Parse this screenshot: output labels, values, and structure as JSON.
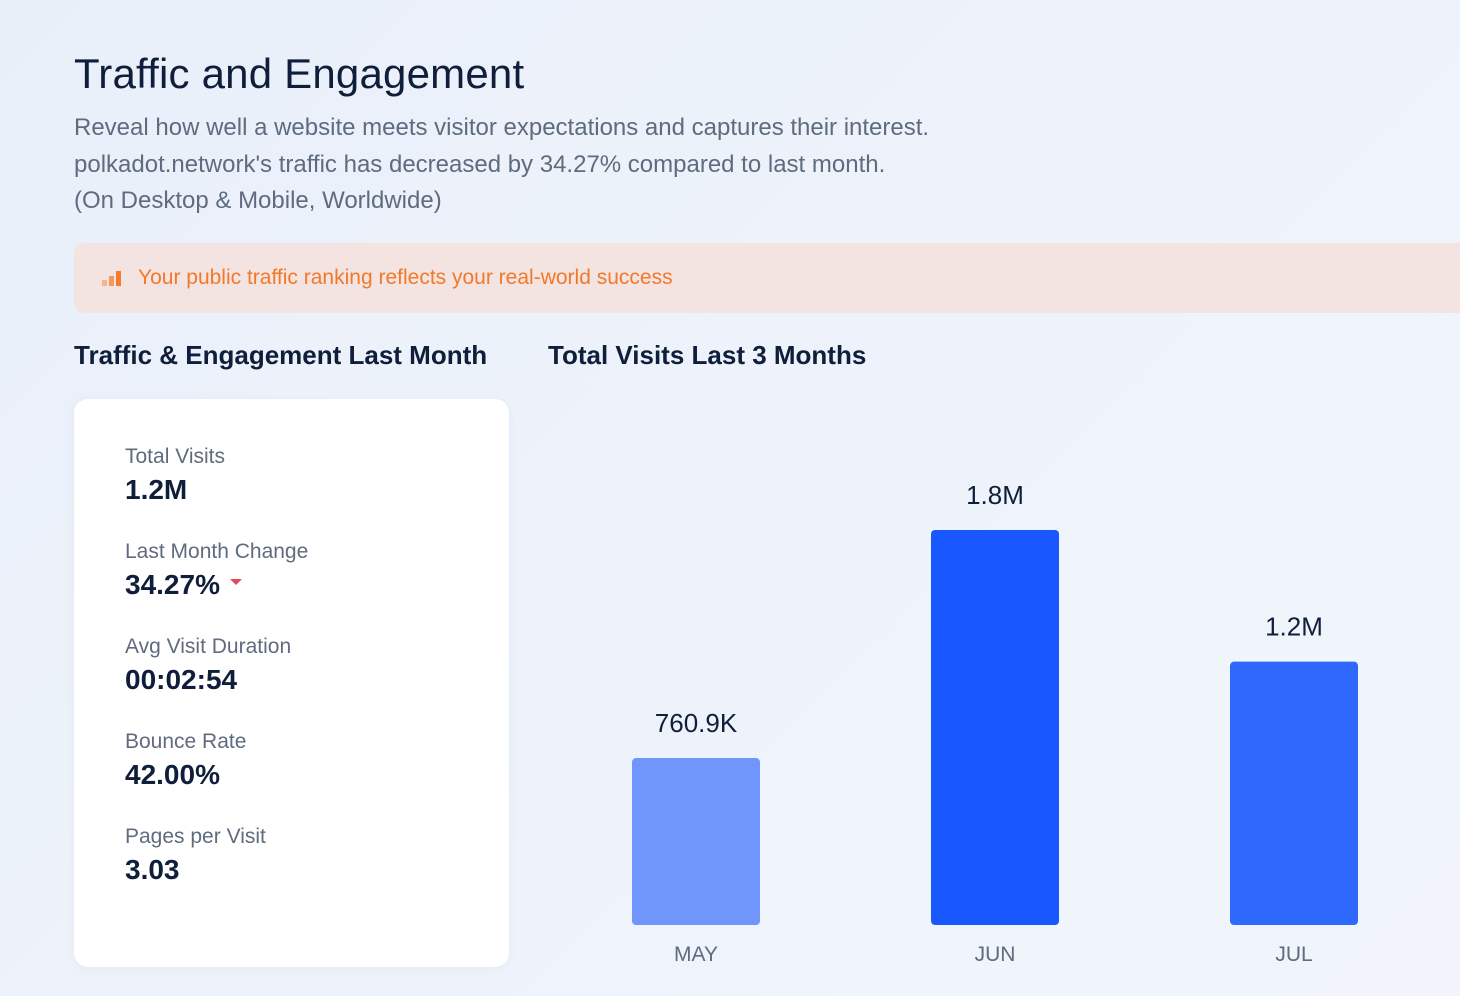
{
  "header": {
    "title": "Traffic and Engagement",
    "description_lines": [
      "Reveal how well a website meets visitor expectations and captures their interest.",
      "polkadot.network's traffic has decreased by 34.27% compared to last month.",
      "(On Desktop & Mobile, Worldwide)"
    ]
  },
  "banner": {
    "icon": "bar-chart-icon",
    "text": "Your public traffic ranking reflects your real-world success",
    "color": "#f2782a",
    "background": "#f4e4e1"
  },
  "sections": {
    "left_title": "Traffic & Engagement Last Month",
    "right_title": "Total Visits Last 3 Months"
  },
  "stats": [
    {
      "label": "Total Visits",
      "value": "1.2M"
    },
    {
      "label": "Last Month Change",
      "value": "34.27%",
      "trend": "down"
    },
    {
      "label": "Avg Visit Duration",
      "value": "00:02:54"
    },
    {
      "label": "Bounce Rate",
      "value": "42.00%"
    },
    {
      "label": "Pages per Visit",
      "value": "3.03"
    }
  ],
  "chart_data": {
    "type": "bar",
    "title": "Total Visits Last 3 Months",
    "categories": [
      "MAY",
      "JUN",
      "JUL"
    ],
    "values": [
      760900,
      1800000,
      1200000
    ],
    "value_labels": [
      "760.9K",
      "1.8M",
      "1.2M"
    ],
    "colors": [
      "#7096fc",
      "#1a58ff",
      "#2e68fc"
    ],
    "grid": false,
    "legend": "none"
  }
}
